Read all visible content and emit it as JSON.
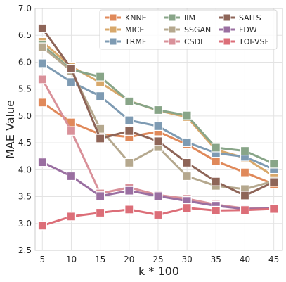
{
  "chart_data": {
    "type": "line",
    "xlabel": "k * 100",
    "ylabel": "MAE Value",
    "x": [
      5,
      10,
      15,
      20,
      25,
      30,
      35,
      40,
      45
    ],
    "xticks": [
      "5",
      "10",
      "15",
      "20",
      "25",
      "30",
      "35",
      "40",
      "45"
    ],
    "ylim": [
      2.5,
      7.0
    ],
    "yticks": [
      "2.5",
      "3.0",
      "3.5",
      "4.0",
      "4.5",
      "5.0",
      "5.5",
      "6.0",
      "6.5",
      "7.0"
    ],
    "grid": true,
    "legend_position": "top-right",
    "series": [
      {
        "name": "KNNE",
        "color": "#e0895a",
        "values": [
          5.25,
          4.88,
          4.66,
          4.61,
          4.71,
          4.47,
          4.16,
          3.95,
          3.73
        ]
      },
      {
        "name": "MICE",
        "color": "#d8a86b",
        "values": [
          6.38,
          5.92,
          5.62,
          5.28,
          5.1,
          4.98,
          4.37,
          4.22,
          3.88
        ]
      },
      {
        "name": "TRMF",
        "color": "#7e9bb3",
        "values": [
          5.98,
          5.63,
          5.37,
          4.92,
          4.81,
          4.51,
          4.31,
          4.24,
          4.01
        ]
      },
      {
        "name": "IIM",
        "color": "#88a588",
        "values": [
          6.32,
          5.86,
          5.73,
          5.27,
          5.11,
          5.01,
          4.41,
          4.35,
          4.11
        ]
      },
      {
        "name": "SSGAN",
        "color": "#b5a88e",
        "values": [
          6.28,
          5.84,
          4.76,
          4.13,
          4.42,
          3.88,
          3.7,
          3.64,
          3.79
        ]
      },
      {
        "name": "CSDI",
        "color": "#d9919a",
        "values": [
          5.68,
          4.72,
          3.56,
          3.67,
          3.53,
          3.46,
          3.35,
          3.28,
          3.28
        ]
      },
      {
        "name": "SAITS",
        "color": "#8e6558",
        "values": [
          6.63,
          5.88,
          4.58,
          4.72,
          4.53,
          4.13,
          3.78,
          3.52,
          3.77
        ]
      },
      {
        "name": "FDW",
        "color": "#9a6fa1",
        "values": [
          4.14,
          3.88,
          3.51,
          3.61,
          3.51,
          3.42,
          3.33,
          3.27,
          3.28
        ]
      },
      {
        "name": "TOI-VSF",
        "color": "#dc6e78",
        "values": [
          2.96,
          3.13,
          3.2,
          3.26,
          3.16,
          3.29,
          3.24,
          3.25,
          3.27
        ]
      }
    ]
  }
}
